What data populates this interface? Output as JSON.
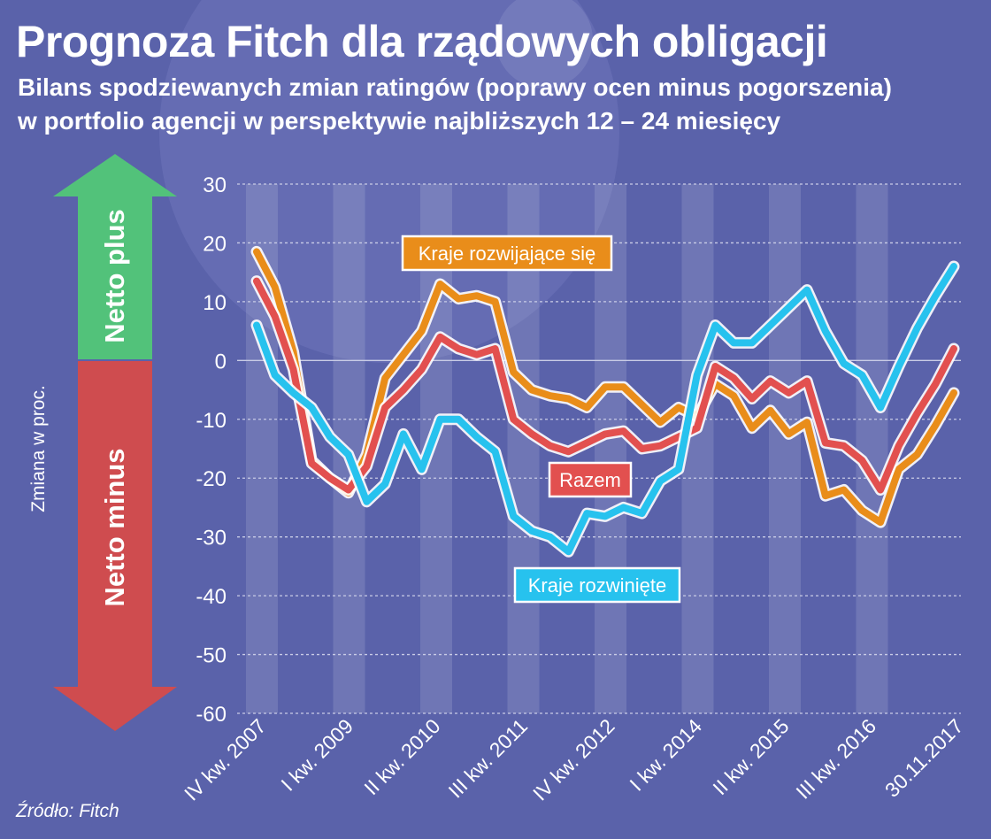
{
  "title": "Prognoza Fitch dla rządowych obligacji",
  "subtitle_line1": "Bilans spodziewanych zmian ratingów (poprawy ocen minus pogorszenia)",
  "subtitle_line2": "w portfolio agencji w perspektywie najbliższych 12 – 24 miesięcy",
  "source": "Źródło: Fitch",
  "colors": {
    "background": "#5a62aa",
    "grid": "#c9cce6",
    "razem": "#e2504f",
    "rozwijajace": "#e98d1a",
    "rozwiniete": "#27c2ee",
    "arrow_plus": "#52c27a",
    "arrow_minus": "#cf4c4f"
  },
  "arrows": {
    "plus_label": "Netto plus",
    "minus_label": "Netto minus"
  },
  "chart_data": {
    "type": "line",
    "title": "Prognoza Fitch dla rządowych obligacji",
    "ylabel": "Zmiana w proc.",
    "ylim": [
      -60,
      30
    ],
    "yticks": [
      "30",
      "20",
      "10",
      "0",
      "-10",
      "-20",
      "-30",
      "-40",
      "-50",
      "-60"
    ],
    "xtick_labels": [
      "IV kw. 2007",
      "I kw. 2009",
      "II kw. 2010",
      "III kw. 2011",
      "IV kw. 2012",
      "I kw. 2014",
      "II kw. 2015",
      "III kw. 2016",
      "30.11.2017"
    ],
    "grid": "horizontal",
    "series": [
      {
        "name": "Kraje rozwijające się",
        "color": "#e98d1a",
        "values": [
          18.5,
          12.5,
          1.5,
          -17,
          -20,
          -22.5,
          -16,
          -3,
          1,
          5,
          13,
          10.5,
          11,
          10,
          -2,
          -5,
          -6,
          -6.5,
          -8,
          -4.5,
          -4.5,
          -7.5,
          -10.5,
          -8,
          -9.5,
          -4,
          -6,
          -11.5,
          -8.5,
          -12.5,
          -10.5,
          -23,
          -22,
          -25.5,
          -27.5,
          -18.5,
          -16,
          -11,
          -5.5
        ]
      },
      {
        "name": "Razem",
        "color": "#e2504f",
        "values": [
          13.5,
          7.5,
          -1.5,
          -17.5,
          -20,
          -22,
          -18,
          -8,
          -5,
          -1.5,
          4,
          2,
          1,
          2,
          -10,
          -12.5,
          -14.5,
          -15.5,
          -14,
          -12.5,
          -12,
          -15,
          -14.5,
          -13,
          -11.5,
          -1,
          -3,
          -6.5,
          -3.5,
          -5.5,
          -3.5,
          -14,
          -14.5,
          -17,
          -22,
          -14.5,
          -9,
          -4,
          2
        ]
      },
      {
        "name": "Kraje rozwinięte",
        "color": "#27c2ee",
        "values": [
          6,
          -2.5,
          -5.5,
          -8,
          -13,
          -16,
          -24,
          -21,
          -12.5,
          -18.5,
          -10,
          -10,
          -13,
          -15.5,
          -26.5,
          -29,
          -30,
          -32.5,
          -26,
          -26.5,
          -25,
          -26,
          -20.5,
          -18.5,
          -2.5,
          6,
          3,
          3,
          6,
          9,
          12,
          5,
          -0.5,
          -2.5,
          -8,
          -1,
          5.5,
          11,
          16
        ]
      }
    ]
  }
}
